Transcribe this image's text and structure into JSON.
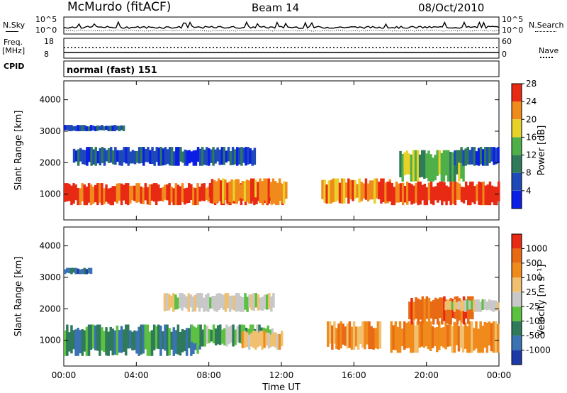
{
  "header": {
    "station": "McMurdo (fitACF)",
    "beam": "Beam 14",
    "date": "08/Oct/2010"
  },
  "top_panels": {
    "nsky_label": "N.Sky",
    "nsky_ticks": [
      "10^5",
      "10^0"
    ],
    "nsearch_label": "N.Search",
    "nsearch_ticks": [
      "10^5",
      "10^0"
    ],
    "freq_label_1": "Freq.",
    "freq_label_2": "[MHz]",
    "freq_ticks": [
      "18",
      "8"
    ],
    "nave_label": "Nave",
    "nave_ticks": [
      "60",
      "0"
    ],
    "cpid_label": "CPID",
    "cpid_value": "normal (fast) 151"
  },
  "chart_data": [
    {
      "type": "heatmap",
      "ylabel": "Slant Range [km]",
      "xlabel": "",
      "x_ticks": [
        "00:00",
        "04:00",
        "08:00",
        "12:00",
        "16:00",
        "20:00",
        "00:00"
      ],
      "y_ticks": [
        "1000",
        "2000",
        "3000",
        "4000"
      ],
      "ylim": [
        180,
        4600
      ],
      "colorbar_label": "Power [dB]",
      "colorbar_ticks": [
        "4",
        "8",
        "12",
        "16",
        "20",
        "24",
        "28"
      ],
      "colors": [
        "#0a1ee6",
        "#1e4ab8",
        "#2e7a5a",
        "#4fb04a",
        "#e8d22a",
        "#f08a1a",
        "#e82a14"
      ],
      "echo_bands": [
        {
          "t_start": 0.0,
          "t_end": 3.3,
          "range_km": [
            3000,
            3200
          ],
          "level": 1
        },
        {
          "t_start": 0.0,
          "t_end": 12.0,
          "range_km": [
            650,
            1350
          ],
          "level": 6
        },
        {
          "t_start": 0.5,
          "t_end": 10.5,
          "range_km": [
            1900,
            2500
          ],
          "level": 1
        },
        {
          "t_start": 8.0,
          "t_end": 12.3,
          "range_km": [
            700,
            1500
          ],
          "level": 5
        },
        {
          "t_start": 14.2,
          "t_end": 18.0,
          "range_km": [
            700,
            1500
          ],
          "level": 5
        },
        {
          "t_start": 17.8,
          "t_end": 24.0,
          "range_km": [
            650,
            1400
          ],
          "level": 6
        },
        {
          "t_start": 18.5,
          "t_end": 22.0,
          "range_km": [
            1400,
            2400
          ],
          "level": 3
        },
        {
          "t_start": 21.5,
          "t_end": 24.0,
          "range_km": [
            1900,
            2500
          ],
          "level": 1
        }
      ]
    },
    {
      "type": "heatmap",
      "ylabel": "Slant Range [km]",
      "xlabel": "Time UT",
      "x_ticks": [
        "00:00",
        "04:00",
        "08:00",
        "12:00",
        "16:00",
        "20:00",
        "00:00"
      ],
      "y_ticks": [
        "1000",
        "2000",
        "3000",
        "4000"
      ],
      "ylim": [
        180,
        4600
      ],
      "colorbar_label": "Velocity [m s⁻¹]",
      "colorbar_ticks": [
        "1000",
        "500",
        "100",
        "25",
        "-25",
        "-100",
        "-500",
        "-1000"
      ],
      "colors": [
        "#1e3aa8",
        "#3a72b4",
        "#2e7a5a",
        "#5cc040",
        "#c8c8c8",
        "#f0c070",
        "#f08a1a",
        "#e86a14",
        "#e82a14"
      ],
      "echo_bands": [
        {
          "t_start": 0.0,
          "t_end": 1.5,
          "range_km": [
            3100,
            3300
          ],
          "level": 1
        },
        {
          "t_start": 0.0,
          "t_end": 7.5,
          "range_km": [
            500,
            1500
          ],
          "level": 2
        },
        {
          "t_start": 5.5,
          "t_end": 11.5,
          "range_km": [
            1900,
            2500
          ],
          "level": 4
        },
        {
          "t_start": 7.0,
          "t_end": 11.5,
          "range_km": [
            800,
            1500
          ],
          "level": 3
        },
        {
          "t_start": 9.8,
          "t_end": 12.0,
          "range_km": [
            700,
            1300
          ],
          "level": 5
        },
        {
          "t_start": 14.5,
          "t_end": 17.5,
          "range_km": [
            700,
            1600
          ],
          "level": 6
        },
        {
          "t_start": 18.0,
          "t_end": 24.0,
          "range_km": [
            600,
            1600
          ],
          "level": 6
        },
        {
          "t_start": 19.0,
          "t_end": 22.5,
          "range_km": [
            1500,
            2400
          ],
          "level": 7
        },
        {
          "t_start": 21.0,
          "t_end": 24.0,
          "range_km": [
            1900,
            2300
          ],
          "level": 4
        }
      ]
    }
  ]
}
